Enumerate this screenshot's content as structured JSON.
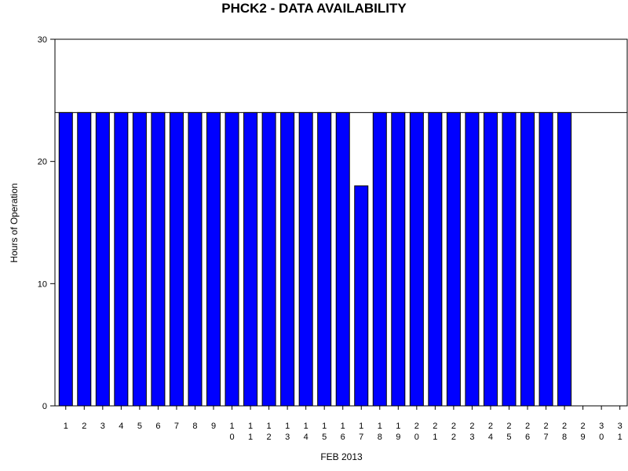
{
  "chart_data": {
    "type": "bar",
    "title": "PHCK2 - DATA AVAILABILITY",
    "xlabel": "FEB 2013",
    "ylabel": "Hours of Operation",
    "ylim": [
      0,
      30
    ],
    "yticks": [
      0,
      10,
      20,
      30
    ],
    "reference_line": 24,
    "grid": false,
    "legend": "none",
    "categories": [
      "1",
      "2",
      "3",
      "4",
      "5",
      "6",
      "7",
      "8",
      "9",
      "10",
      "11",
      "12",
      "13",
      "14",
      "15",
      "16",
      "17",
      "18",
      "19",
      "20",
      "21",
      "22",
      "23",
      "24",
      "25",
      "26",
      "27",
      "28",
      "29",
      "30",
      "31"
    ],
    "values": [
      24,
      24,
      24,
      24,
      24,
      24,
      24,
      24,
      24,
      24,
      24,
      24,
      24,
      24,
      24,
      24,
      18,
      24,
      24,
      24,
      24,
      24,
      24,
      24,
      24,
      24,
      24,
      24,
      null,
      null,
      null
    ],
    "bar_color": "#0000ff",
    "bar_edge_color": "#000000"
  }
}
